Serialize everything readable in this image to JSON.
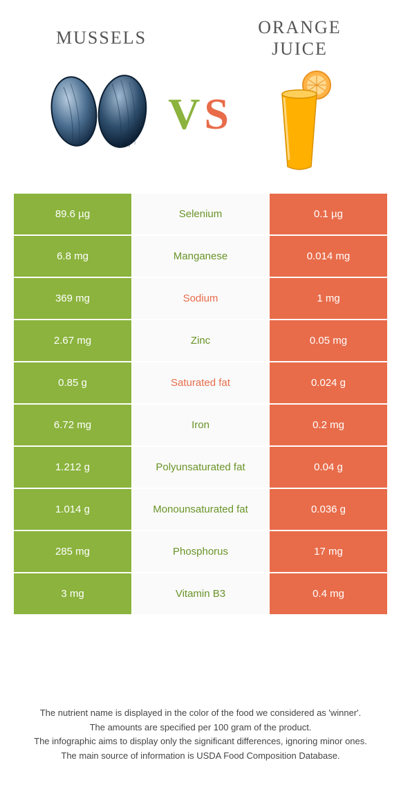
{
  "left_food": {
    "title": "Mussels"
  },
  "right_food": {
    "title": "Orange juice"
  },
  "colors": {
    "green": "#8bb33d",
    "orange": "#e86c4a",
    "green_text": "#6a9428"
  },
  "rows": [
    {
      "left": "89.6 µg",
      "nutrient": "Selenium",
      "right": "0.1 µg",
      "winner": "left"
    },
    {
      "left": "6.8 mg",
      "nutrient": "Manganese",
      "right": "0.014 mg",
      "winner": "left"
    },
    {
      "left": "369 mg",
      "nutrient": "Sodium",
      "right": "1 mg",
      "winner": "right"
    },
    {
      "left": "2.67 mg",
      "nutrient": "Zinc",
      "right": "0.05 mg",
      "winner": "left"
    },
    {
      "left": "0.85 g",
      "nutrient": "Saturated fat",
      "right": "0.024 g",
      "winner": "right"
    },
    {
      "left": "6.72 mg",
      "nutrient": "Iron",
      "right": "0.2 mg",
      "winner": "left"
    },
    {
      "left": "1.212 g",
      "nutrient": "Polyunsaturated fat",
      "right": "0.04 g",
      "winner": "left"
    },
    {
      "left": "1.014 g",
      "nutrient": "Monounsaturated fat",
      "right": "0.036 g",
      "winner": "left"
    },
    {
      "left": "285 mg",
      "nutrient": "Phosphorus",
      "right": "17 mg",
      "winner": "left"
    },
    {
      "left": "3 mg",
      "nutrient": "Vitamin B3",
      "right": "0.4 mg",
      "winner": "left"
    }
  ],
  "footer_lines": [
    "The nutrient name is displayed in the color of the food we considered as 'winner'.",
    "The amounts are specified per 100 gram of the product.",
    "The infographic aims to display only the significant differences, ignoring minor ones.",
    "The main source of information is USDA Food Composition Database."
  ]
}
